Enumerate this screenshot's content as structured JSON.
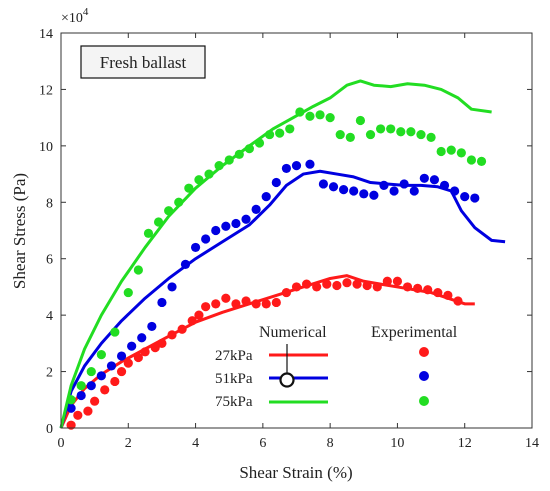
{
  "chart_data": {
    "type": "line",
    "xlabel": "Shear Strain (%)",
    "ylabel": "Shear Stress (Pa)",
    "xlim": [
      0,
      14
    ],
    "ylim": [
      0,
      140000
    ],
    "xticks": [
      "0",
      "2",
      "4",
      "6",
      "8",
      "10",
      "12",
      "14"
    ],
    "yticks": [
      "0",
      "2",
      "4",
      "6",
      "8",
      "10",
      "12",
      "14"
    ],
    "y_exponent_label": "×10",
    "y_exponent_power": "4",
    "annotation": "Fresh ballast",
    "legend_header_numerical": "Numerical",
    "legend_header_experimental": "Experimental",
    "legend_placement": "bottom-right",
    "grid": false,
    "series": [
      {
        "name": "27kPa",
        "color": "#ff1a1a",
        "numerical": [
          [
            0,
            0
          ],
          [
            0.3,
            8000
          ],
          [
            0.7,
            14000
          ],
          [
            1.2,
            19000
          ],
          [
            1.8,
            23500
          ],
          [
            2.5,
            28000
          ],
          [
            3.2,
            32500
          ],
          [
            4.0,
            37500
          ],
          [
            4.8,
            41000
          ],
          [
            5.6,
            44000
          ],
          [
            6.4,
            47000
          ],
          [
            7.2,
            50000
          ],
          [
            8.0,
            53000
          ],
          [
            8.5,
            54000
          ],
          [
            9.0,
            52000
          ],
          [
            9.5,
            51000
          ],
          [
            10.0,
            50000
          ],
          [
            10.5,
            49000
          ],
          [
            11.0,
            48000
          ],
          [
            11.5,
            46000
          ],
          [
            12.0,
            44000
          ],
          [
            12.3,
            44000
          ]
        ],
        "experimental": [
          [
            0.3,
            1000
          ],
          [
            0.5,
            4500
          ],
          [
            0.8,
            6000
          ],
          [
            1.0,
            9500
          ],
          [
            1.3,
            13500
          ],
          [
            1.6,
            16500
          ],
          [
            1.8,
            20000
          ],
          [
            2.0,
            23000
          ],
          [
            2.3,
            25000
          ],
          [
            2.5,
            27000
          ],
          [
            2.8,
            28500
          ],
          [
            3.0,
            30000
          ],
          [
            3.3,
            33000
          ],
          [
            3.6,
            35000
          ],
          [
            3.9,
            38000
          ],
          [
            4.1,
            40000
          ],
          [
            4.3,
            43000
          ],
          [
            4.6,
            44000
          ],
          [
            4.9,
            46000
          ],
          [
            5.2,
            44000
          ],
          [
            5.5,
            45000
          ],
          [
            5.8,
            44000
          ],
          [
            6.1,
            44000
          ],
          [
            6.4,
            44500
          ],
          [
            6.7,
            48000
          ],
          [
            7.0,
            50000
          ],
          [
            7.3,
            51000
          ],
          [
            7.6,
            50000
          ],
          [
            7.9,
            51000
          ],
          [
            8.2,
            50500
          ],
          [
            8.5,
            51500
          ],
          [
            8.8,
            51000
          ],
          [
            9.1,
            50500
          ],
          [
            9.4,
            50000
          ],
          [
            9.7,
            52000
          ],
          [
            10.0,
            52000
          ],
          [
            10.3,
            50000
          ],
          [
            10.6,
            49500
          ],
          [
            10.9,
            49000
          ],
          [
            11.2,
            48000
          ],
          [
            11.5,
            47000
          ],
          [
            11.8,
            45000
          ]
        ]
      },
      {
        "name": "51kPa",
        "color": "#0000e0",
        "numerical": [
          [
            0,
            0
          ],
          [
            0.3,
            13000
          ],
          [
            0.7,
            22000
          ],
          [
            1.2,
            30000
          ],
          [
            1.8,
            38000
          ],
          [
            2.5,
            46000
          ],
          [
            3.2,
            53000
          ],
          [
            4.0,
            60000
          ],
          [
            4.8,
            66000
          ],
          [
            5.6,
            72000
          ],
          [
            6.2,
            79000
          ],
          [
            6.7,
            86000
          ],
          [
            7.2,
            90000
          ],
          [
            7.7,
            91000
          ],
          [
            8.2,
            90000
          ],
          [
            8.7,
            89000
          ],
          [
            9.2,
            87000
          ],
          [
            9.7,
            86500
          ],
          [
            10.2,
            86000
          ],
          [
            10.7,
            86000
          ],
          [
            11.2,
            85500
          ],
          [
            11.6,
            84000
          ],
          [
            11.9,
            77000
          ],
          [
            12.3,
            71000
          ],
          [
            12.8,
            66500
          ],
          [
            13.2,
            66000
          ]
        ],
        "experimental": [
          [
            0.3,
            7000
          ],
          [
            0.6,
            11500
          ],
          [
            0.9,
            15000
          ],
          [
            1.2,
            18500
          ],
          [
            1.5,
            22000
          ],
          [
            1.8,
            25500
          ],
          [
            2.1,
            29000
          ],
          [
            2.4,
            32000
          ],
          [
            2.7,
            36000
          ],
          [
            3.0,
            44500
          ],
          [
            3.3,
            50000
          ],
          [
            3.7,
            58000
          ],
          [
            4.0,
            64000
          ],
          [
            4.3,
            67000
          ],
          [
            4.6,
            70000
          ],
          [
            4.9,
            71500
          ],
          [
            5.2,
            72500
          ],
          [
            5.5,
            74000
          ],
          [
            5.8,
            77500
          ],
          [
            6.1,
            82000
          ],
          [
            6.4,
            87000
          ],
          [
            6.7,
            92000
          ],
          [
            7.0,
            93000
          ],
          [
            7.4,
            93500
          ],
          [
            7.8,
            86500
          ],
          [
            8.1,
            85500
          ],
          [
            8.4,
            84500
          ],
          [
            8.7,
            84000
          ],
          [
            9.0,
            83000
          ],
          [
            9.3,
            82500
          ],
          [
            9.6,
            86000
          ],
          [
            9.9,
            84000
          ],
          [
            10.2,
            86500
          ],
          [
            10.5,
            84000
          ],
          [
            10.8,
            88500
          ],
          [
            11.1,
            88000
          ],
          [
            11.4,
            86000
          ],
          [
            11.7,
            84000
          ],
          [
            12.0,
            82000
          ],
          [
            12.3,
            81500
          ]
        ]
      },
      {
        "name": "75kPa",
        "color": "#22dd22",
        "numerical": [
          [
            0,
            0
          ],
          [
            0.3,
            15000
          ],
          [
            0.7,
            28000
          ],
          [
            1.2,
            40000
          ],
          [
            1.8,
            52000
          ],
          [
            2.5,
            64000
          ],
          [
            3.2,
            75000
          ],
          [
            4.0,
            85000
          ],
          [
            4.8,
            93000
          ],
          [
            5.6,
            100000
          ],
          [
            6.3,
            106000
          ],
          [
            6.9,
            110000
          ],
          [
            7.5,
            114000
          ],
          [
            8.0,
            117000
          ],
          [
            8.5,
            121500
          ],
          [
            8.9,
            123000
          ],
          [
            9.3,
            121500
          ],
          [
            9.8,
            121000
          ],
          [
            10.3,
            122000
          ],
          [
            10.8,
            121500
          ],
          [
            11.3,
            120000
          ],
          [
            11.8,
            117000
          ],
          [
            12.2,
            113000
          ],
          [
            12.8,
            112000
          ]
        ],
        "experimental": [
          [
            0.3,
            10000
          ],
          [
            0.6,
            15000
          ],
          [
            0.9,
            20000
          ],
          [
            1.2,
            26000
          ],
          [
            1.6,
            34000
          ],
          [
            2.0,
            48000
          ],
          [
            2.3,
            56000
          ],
          [
            2.6,
            69000
          ],
          [
            2.9,
            73000
          ],
          [
            3.2,
            77000
          ],
          [
            3.5,
            80000
          ],
          [
            3.8,
            85000
          ],
          [
            4.1,
            88000
          ],
          [
            4.4,
            90000
          ],
          [
            4.7,
            93000
          ],
          [
            5.0,
            95000
          ],
          [
            5.3,
            97000
          ],
          [
            5.6,
            99000
          ],
          [
            5.9,
            101000
          ],
          [
            6.2,
            104000
          ],
          [
            6.5,
            104500
          ],
          [
            6.8,
            106000
          ],
          [
            7.1,
            112000
          ],
          [
            7.4,
            110500
          ],
          [
            7.7,
            111000
          ],
          [
            8.0,
            110000
          ],
          [
            8.3,
            104000
          ],
          [
            8.6,
            103000
          ],
          [
            8.9,
            109000
          ],
          [
            9.2,
            104000
          ],
          [
            9.5,
            106000
          ],
          [
            9.8,
            106000
          ],
          [
            10.1,
            105000
          ],
          [
            10.4,
            105000
          ],
          [
            10.7,
            104000
          ],
          [
            11.0,
            103000
          ],
          [
            11.3,
            98000
          ],
          [
            11.6,
            98500
          ],
          [
            11.9,
            97500
          ],
          [
            12.2,
            95000
          ],
          [
            12.5,
            94500
          ]
        ]
      }
    ]
  }
}
